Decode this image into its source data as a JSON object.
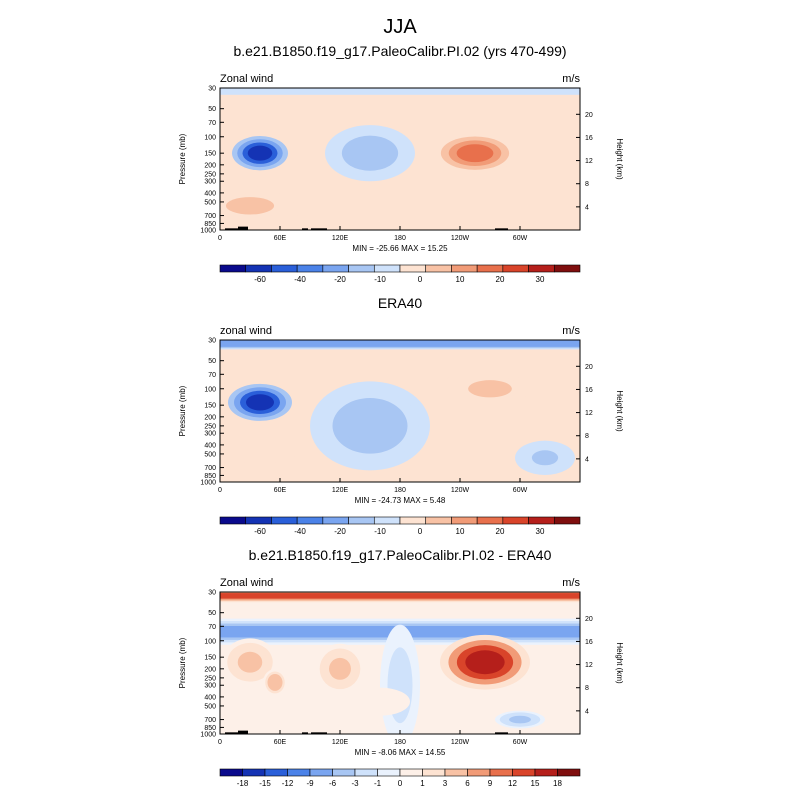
{
  "figure": {
    "title": "JJA"
  },
  "palettes": {
    "wind": [
      "#0a0a8c",
      "#1433b4",
      "#2a5fd9",
      "#4b82e8",
      "#7aa5f0",
      "#a8c6f3",
      "#cfe2fb",
      "#fde3d2",
      "#f8c2a5",
      "#f19b77",
      "#e8704c",
      "#d9442a",
      "#b51f1b",
      "#7f0e0e"
    ],
    "diff": [
      "#0a0a8c",
      "#1433b4",
      "#2a5fd9",
      "#4b82e8",
      "#7aa5f0",
      "#a8c6f3",
      "#cfe2fb",
      "#eaf2fd",
      "#fdf0e8",
      "#fde3d2",
      "#f8c2a5",
      "#f19b77",
      "#e8704c",
      "#d9442a",
      "#b51f1b",
      "#7f0e0e"
    ]
  },
  "chart_data": [
    {
      "type": "heatmap",
      "title": "b.e21.B1850.f19_g17.PaleoCalibr.PI.02 (yrs 470-499)",
      "left_label": "Zonal wind",
      "right_label": "m/s",
      "ylabel": "Pressure (mb)",
      "ylabel_right": "Height (km)",
      "stats": "MIN = -25.66  MAX =  15.25",
      "x_ticks": [
        "0",
        "60E",
        "120E",
        "180",
        "120W",
        "60W"
      ],
      "x_tick_values": [
        0,
        60,
        120,
        180,
        240,
        300
      ],
      "x_range": [
        0,
        360
      ],
      "y_ticks": [
        "30",
        "50",
        "70",
        "100",
        "150",
        "200",
        "250",
        "300",
        "400",
        "500",
        "700",
        "850",
        "1000"
      ],
      "y_tick_values": [
        30,
        50,
        70,
        100,
        150,
        200,
        250,
        300,
        400,
        500,
        700,
        850,
        1000
      ],
      "y_range": [
        30,
        1000
      ],
      "height_ticks": [
        "4",
        "8",
        "12",
        "16",
        "20"
      ],
      "height_tick_values": [
        4,
        8,
        12,
        16,
        20
      ],
      "colorbar_labels": [
        "-60",
        "-40",
        "-20",
        "-10",
        "0",
        "10",
        "20",
        "30"
      ],
      "palette": "wind",
      "min": -25.66,
      "max": 15.25,
      "features": [
        {
          "lon": 0,
          "p": 30,
          "width_lon": 360,
          "width_p": 12,
          "value": -3,
          "kind": "band"
        },
        {
          "lon": 40,
          "p": 150,
          "width_lon": 28,
          "width_p": 60,
          "value": -25,
          "kind": "blob"
        },
        {
          "lon": 150,
          "p": 150,
          "width_lon": 45,
          "width_p": 90,
          "value": -8,
          "kind": "blob"
        },
        {
          "lon": 255,
          "p": 150,
          "width_lon": 42,
          "width_p": 70,
          "value": 15,
          "kind": "blob"
        },
        {
          "lon": 30,
          "p": 550,
          "width_lon": 55,
          "width_p": 250,
          "value": 5,
          "kind": "blob"
        },
        {
          "lon": 330,
          "p": 500,
          "width_lon": 30,
          "width_p": 250,
          "value": 3,
          "kind": "blob"
        }
      ],
      "terrain": [
        {
          "lon_start": 5,
          "lon_end": 22,
          "p_top": 960
        },
        {
          "lon_start": 18,
          "lon_end": 28,
          "p_top": 920
        },
        {
          "lon_start": 82,
          "lon_end": 88,
          "p_top": 960
        },
        {
          "lon_start": 91,
          "lon_end": 107,
          "p_top": 960
        },
        {
          "lon_start": 275,
          "lon_end": 288,
          "p_top": 960
        }
      ]
    },
    {
      "type": "heatmap",
      "title": "ERA40",
      "left_label": "zonal wind",
      "right_label": "m/s",
      "ylabel": "Pressure (mb)",
      "ylabel_right": "Height (km)",
      "stats": "MIN = -24.73  MAX =   5.48",
      "x_ticks": [
        "0",
        "60E",
        "120E",
        "180",
        "120W",
        "60W"
      ],
      "x_tick_values": [
        0,
        60,
        120,
        180,
        240,
        300
      ],
      "x_range": [
        0,
        360
      ],
      "y_ticks": [
        "30",
        "50",
        "70",
        "100",
        "150",
        "200",
        "250",
        "300",
        "400",
        "500",
        "700",
        "850",
        "1000"
      ],
      "y_tick_values": [
        30,
        50,
        70,
        100,
        150,
        200,
        250,
        300,
        400,
        500,
        700,
        850,
        1000
      ],
      "y_range": [
        30,
        1000
      ],
      "height_ticks": [
        "4",
        "8",
        "12",
        "16",
        "20"
      ],
      "height_tick_values": [
        4,
        8,
        12,
        16,
        20
      ],
      "colorbar_labels": [
        "-60",
        "-40",
        "-20",
        "-10",
        "0",
        "10",
        "20",
        "30"
      ],
      "palette": "wind",
      "min": -24.73,
      "max": 5.48,
      "features": [
        {
          "lon": 0,
          "p": 32,
          "width_lon": 360,
          "width_p": 10,
          "value": -12,
          "kind": "band"
        },
        {
          "lon": 40,
          "p": 140,
          "width_lon": 32,
          "width_p": 60,
          "value": -24,
          "kind": "blob"
        },
        {
          "lon": 150,
          "p": 250,
          "width_lon": 60,
          "width_p": 200,
          "value": -7,
          "kind": "blob"
        },
        {
          "lon": 270,
          "p": 100,
          "width_lon": 50,
          "width_p": 45,
          "value": 5,
          "kind": "blob"
        },
        {
          "lon": 40,
          "p": 700,
          "width_lon": 50,
          "width_p": 250,
          "value": 4,
          "kind": "blob"
        },
        {
          "lon": 325,
          "p": 550,
          "width_lon": 30,
          "width_p": 220,
          "value": -5,
          "kind": "blob"
        }
      ],
      "terrain": []
    },
    {
      "type": "heatmap",
      "title": "b.e21.B1850.f19_g17.PaleoCalibr.PI.02 - ERA40",
      "left_label": "Zonal wind",
      "right_label": "m/s",
      "ylabel": "Pressure (mb)",
      "ylabel_right": "Height (km)",
      "stats": "MIN = -8.06  MAX =  14.55",
      "x_ticks": [
        "0",
        "60E",
        "120E",
        "180",
        "120W",
        "60W"
      ],
      "x_tick_values": [
        0,
        60,
        120,
        180,
        240,
        300
      ],
      "x_range": [
        0,
        360
      ],
      "y_ticks": [
        "30",
        "50",
        "70",
        "100",
        "150",
        "200",
        "250",
        "300",
        "400",
        "500",
        "700",
        "850",
        "1000"
      ],
      "y_tick_values": [
        30,
        50,
        70,
        100,
        150,
        200,
        250,
        300,
        400,
        500,
        700,
        850,
        1000
      ],
      "y_range": [
        30,
        1000
      ],
      "height_ticks": [
        "4",
        "8",
        "12",
        "16",
        "20"
      ],
      "height_tick_values": [
        4,
        8,
        12,
        16,
        20
      ],
      "colorbar_labels": [
        "-18",
        "-15",
        "-12",
        "-9",
        "-6",
        "-3",
        "-1",
        "0",
        "1",
        "3",
        "6",
        "9",
        "12",
        "15",
        "18"
      ],
      "palette": "diff",
      "min": -8.06,
      "max": 14.55,
      "features": [
        {
          "lon": 0,
          "p": 33,
          "width_lon": 360,
          "width_p": 8,
          "value": 11,
          "kind": "band"
        },
        {
          "lon": 0,
          "p": 80,
          "width_lon": 360,
          "width_p": 25,
          "value": -7,
          "kind": "band"
        },
        {
          "lon": 30,
          "p": 170,
          "width_lon": 28,
          "width_p": 90,
          "value": 5,
          "kind": "blob"
        },
        {
          "lon": 120,
          "p": 200,
          "width_lon": 25,
          "width_p": 110,
          "value": 5,
          "kind": "blob"
        },
        {
          "lon": 55,
          "p": 280,
          "width_lon": 12,
          "width_p": 90,
          "value": 6,
          "kind": "blob"
        },
        {
          "lon": 265,
          "p": 170,
          "width_lon": 45,
          "width_p": 100,
          "value": 14,
          "kind": "blob"
        },
        {
          "lon": 180,
          "p": 300,
          "width_lon": 20,
          "width_p": 300,
          "value": -4,
          "kind": "blob"
        },
        {
          "lon": 300,
          "p": 700,
          "width_lon": 25,
          "width_p": 150,
          "value": -5,
          "kind": "blob"
        },
        {
          "lon": 160,
          "p": 450,
          "width_lon": 30,
          "width_p": 150,
          "value": 2,
          "kind": "blob"
        }
      ],
      "terrain": [
        {
          "lon_start": 5,
          "lon_end": 22,
          "p_top": 960
        },
        {
          "lon_start": 18,
          "lon_end": 28,
          "p_top": 920
        },
        {
          "lon_start": 82,
          "lon_end": 88,
          "p_top": 960
        },
        {
          "lon_start": 91,
          "lon_end": 107,
          "p_top": 960
        },
        {
          "lon_start": 275,
          "lon_end": 288,
          "p_top": 960
        }
      ]
    }
  ]
}
